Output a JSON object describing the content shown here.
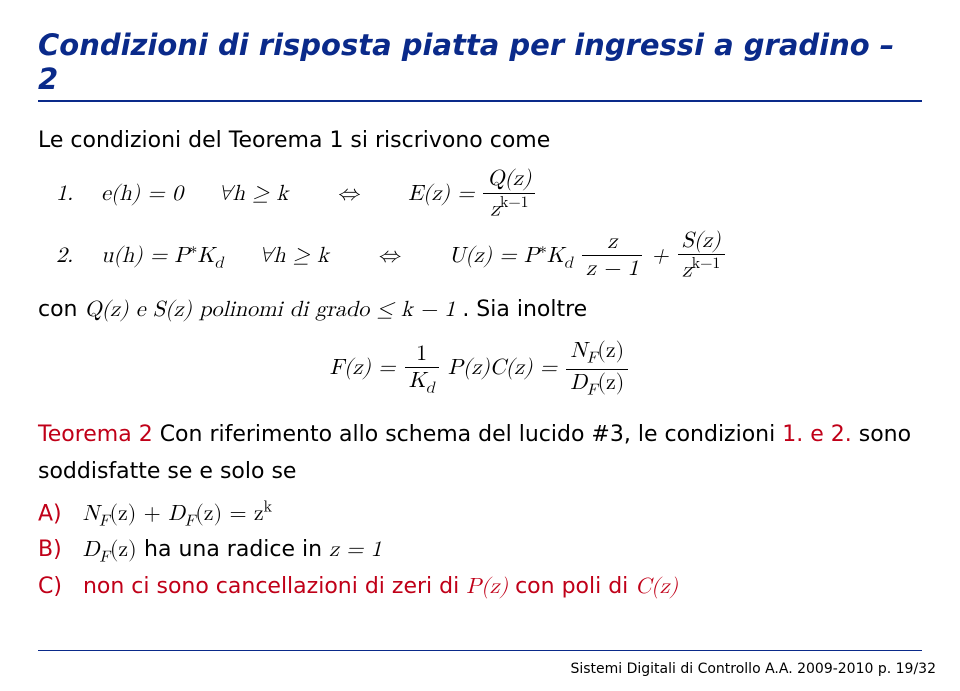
{
  "colors": {
    "title": "#0a2a8a",
    "rule": "#0a2a8a",
    "highlight": "#c00018",
    "body": "#000000",
    "footer_rule": "#0a2a8a"
  },
  "title": "Condizioni di risposta piatta per ingressi a gradino – 2",
  "intro": "Le condizioni del Teorema 1 si riscrivono come",
  "cond1": {
    "label": "1.",
    "lhs": "e(h) = 0",
    "quant": "∀h ≥ k",
    "iff": "⇔",
    "rhs_lhs": "E(z) =",
    "frac_num": "Q(z)",
    "frac_den_base": "z",
    "frac_den_exp": "k−1"
  },
  "cond2": {
    "label": "2.",
    "lhs_pref": "u(h) = P",
    "lhs_star": "∗",
    "lhs_K": "K",
    "lhs_d": "d",
    "quant": "∀h ≥ k",
    "iff": "⇔",
    "rhs_U": "U(z) = P",
    "rhs_star": "∗",
    "rhs_K": "K",
    "rhs_d": "d",
    "frac1_num": "z",
    "frac1_den": "z − 1",
    "plus": "+",
    "frac2_num": "S(z)",
    "frac2_den_base": "z",
    "frac2_den_exp": "k−1"
  },
  "poly_line": {
    "pre": "con ",
    "mid": "Q(z) e S(z) polinomi di grado ≤ k − 1",
    "post": ". Sia inoltre"
  },
  "fz": {
    "lhs": "F(z) =",
    "frac1_num": "1",
    "frac1_den_K": "K",
    "frac1_den_d": "d",
    "mid": "P(z)C(z) =",
    "frac2_num_N": "N",
    "frac2_num_F": "F",
    "frac2_num_arg": "(z)",
    "frac2_den_D": "D",
    "frac2_den_F": "F",
    "frac2_den_arg": "(z)"
  },
  "theorem": {
    "red_pre": "Teorema 2",
    "black_mid": " Con riferimento allo schema del lucido #3, le condizioni ",
    "red_12": "1. e 2.",
    "black_post": " sono soddisfatte se e solo se"
  },
  "items": {
    "A": {
      "label": "A)",
      "body_N": "N",
      "body_F": "F",
      "body_arg1": "(z) + ",
      "body_D": "D",
      "body_arg2": "(z) = z",
      "exp": "k"
    },
    "B": {
      "label": "B)",
      "body_D": "D",
      "body_F": "F",
      "body_arg": "(z)",
      "text": " ha una radice in ",
      "eq": "z = 1"
    },
    "C": {
      "label": "C)",
      "text": "non ci sono cancellazioni di zeri di ",
      "pz": "P(z)",
      "text2": " con poli di ",
      "cz": "C(z)"
    }
  },
  "footer": "Sistemi Digitali di Controllo A.A. 2009-2010 p. 19/32"
}
